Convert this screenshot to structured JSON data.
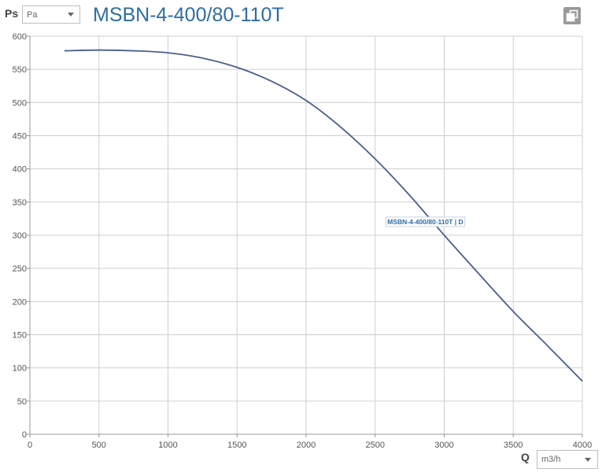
{
  "y_axis": {
    "symbol": "Ps",
    "unit": "Pa"
  },
  "x_axis": {
    "symbol": "Q",
    "unit": "m3/h"
  },
  "colors": {
    "title": "#2e6da4",
    "curve": "#4a5f8a",
    "grid": "#cfcfcf",
    "axis": "#999999"
  },
  "icons": {
    "copy": "copy-icon"
  },
  "chart_data": {
    "type": "line",
    "title": "MSBN-4-400/80-110T",
    "xlabel": "Q",
    "ylabel": "Ps",
    "xlim": [
      0,
      4000
    ],
    "ylim": [
      0,
      600
    ],
    "x_ticks": [
      "0",
      "500",
      "1000",
      "1500",
      "2000",
      "2500",
      "3000",
      "3500",
      "4000"
    ],
    "y_ticks": [
      "0",
      "50",
      "100",
      "150",
      "200",
      "250",
      "300",
      "350",
      "400",
      "450",
      "500",
      "550",
      "600"
    ],
    "grid": true,
    "series": [
      {
        "name": "MSBN-4-400/80-110T | D",
        "x": [
          250,
          500,
          750,
          1000,
          1250,
          1500,
          1750,
          2000,
          2250,
          2500,
          2750,
          3000,
          3250,
          3500,
          3750,
          4000
        ],
        "y": [
          578,
          579,
          578,
          575,
          567,
          553,
          532,
          503,
          463,
          415,
          360,
          300,
          242,
          185,
          133,
          80
        ]
      }
    ]
  }
}
